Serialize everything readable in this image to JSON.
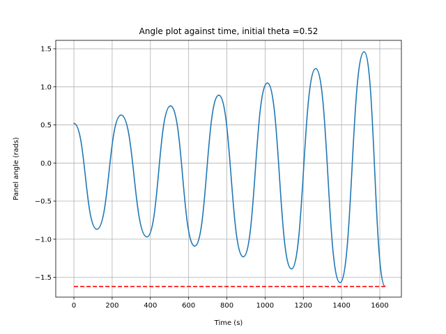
{
  "chart_data": {
    "type": "line",
    "title": "Angle plot against time, initial theta =0.52",
    "xlabel": "Time (s)",
    "ylabel": "Panel angle (rads)",
    "xlim": [
      -95,
      1713
    ],
    "ylim": [
      -1.76,
      1.61
    ],
    "x_ticks": [
      0,
      200,
      400,
      600,
      800,
      1000,
      1200,
      1400,
      1600
    ],
    "x_tick_labels": [
      "0",
      "200",
      "400",
      "600",
      "800",
      "1000",
      "1200",
      "1400",
      "1600"
    ],
    "y_ticks": [
      -1.5,
      -1.0,
      -0.5,
      0.0,
      0.5,
      1.0,
      1.5
    ],
    "y_tick_labels": [
      "−1.5",
      "−1.0",
      "−0.5",
      "0.0",
      "0.5",
      "1.0",
      "1.5"
    ],
    "grid": true,
    "series": [
      {
        "color": "#1f77b4",
        "style": "solid",
        "x": [
          0,
          120,
          247,
          382,
          505,
          632,
          758,
          886,
          1012,
          1138,
          1265,
          1392,
          1518,
          1628
        ],
        "y": [
          0.52,
          -0.87,
          0.63,
          -0.97,
          0.75,
          -1.09,
          0.89,
          -1.23,
          1.05,
          -1.39,
          1.24,
          -1.57,
          1.46,
          -1.62
        ]
      },
      {
        "color": "#ff0000",
        "style": "dashed",
        "x": [
          0,
          1628
        ],
        "y": [
          -1.62,
          -1.62
        ]
      }
    ]
  }
}
